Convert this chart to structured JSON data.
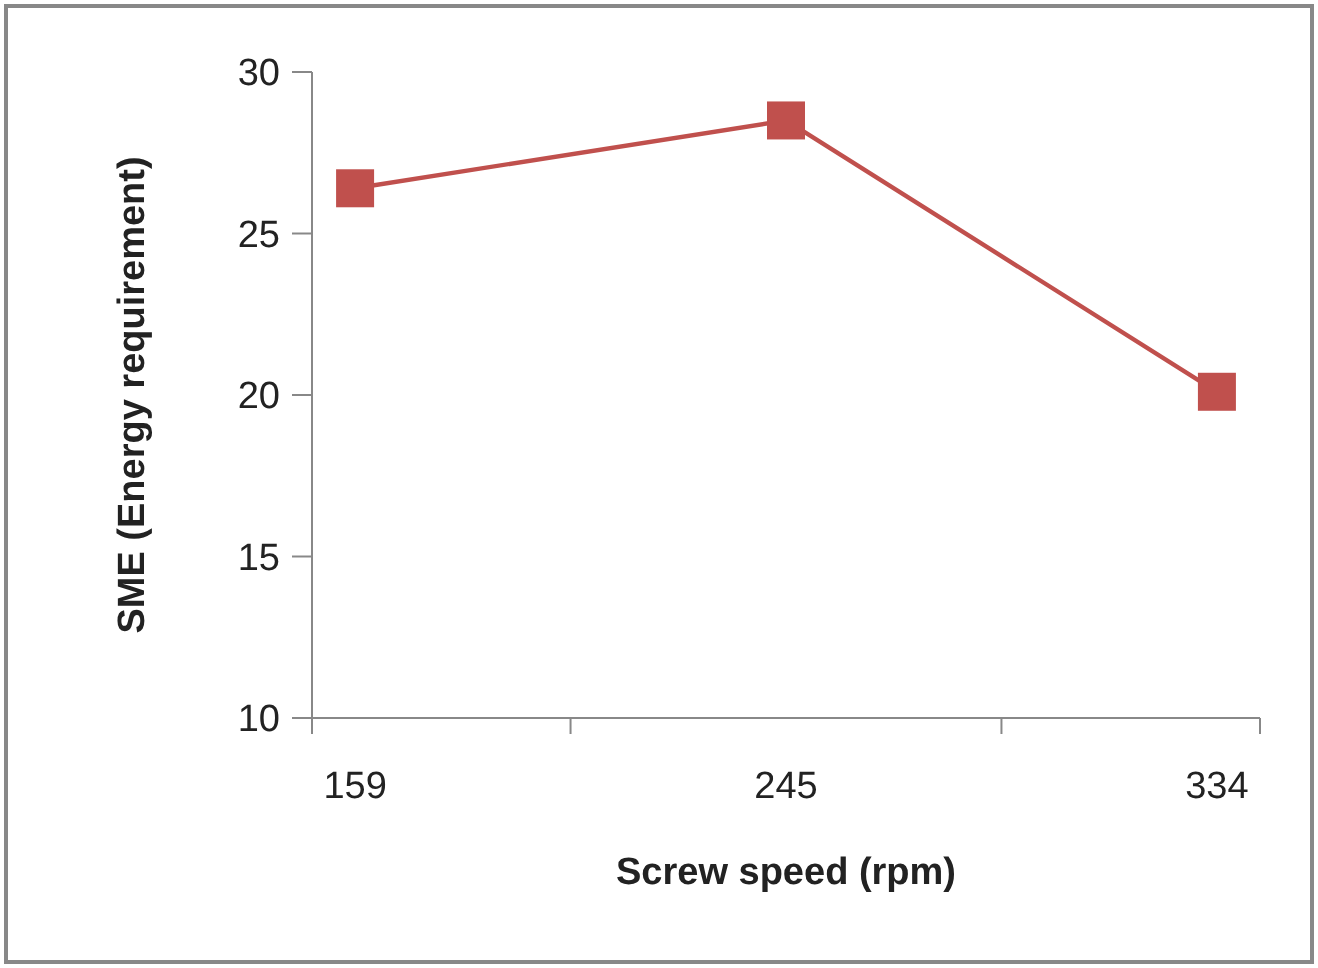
{
  "chart_data": {
    "type": "line",
    "xlabel": "Screw speed (rpm)",
    "ylabel": "SME (Energy requirement)",
    "categories": [
      "159",
      "245",
      "334"
    ],
    "series": [
      {
        "color": "#c0504d",
        "values": [
          26.4,
          28.5,
          20.1
        ]
      }
    ],
    "ylim": [
      10,
      30
    ],
    "yticks": [
      10,
      15,
      20,
      25,
      30
    ],
    "grid": false,
    "marker": "square",
    "line_style": "solid"
  }
}
